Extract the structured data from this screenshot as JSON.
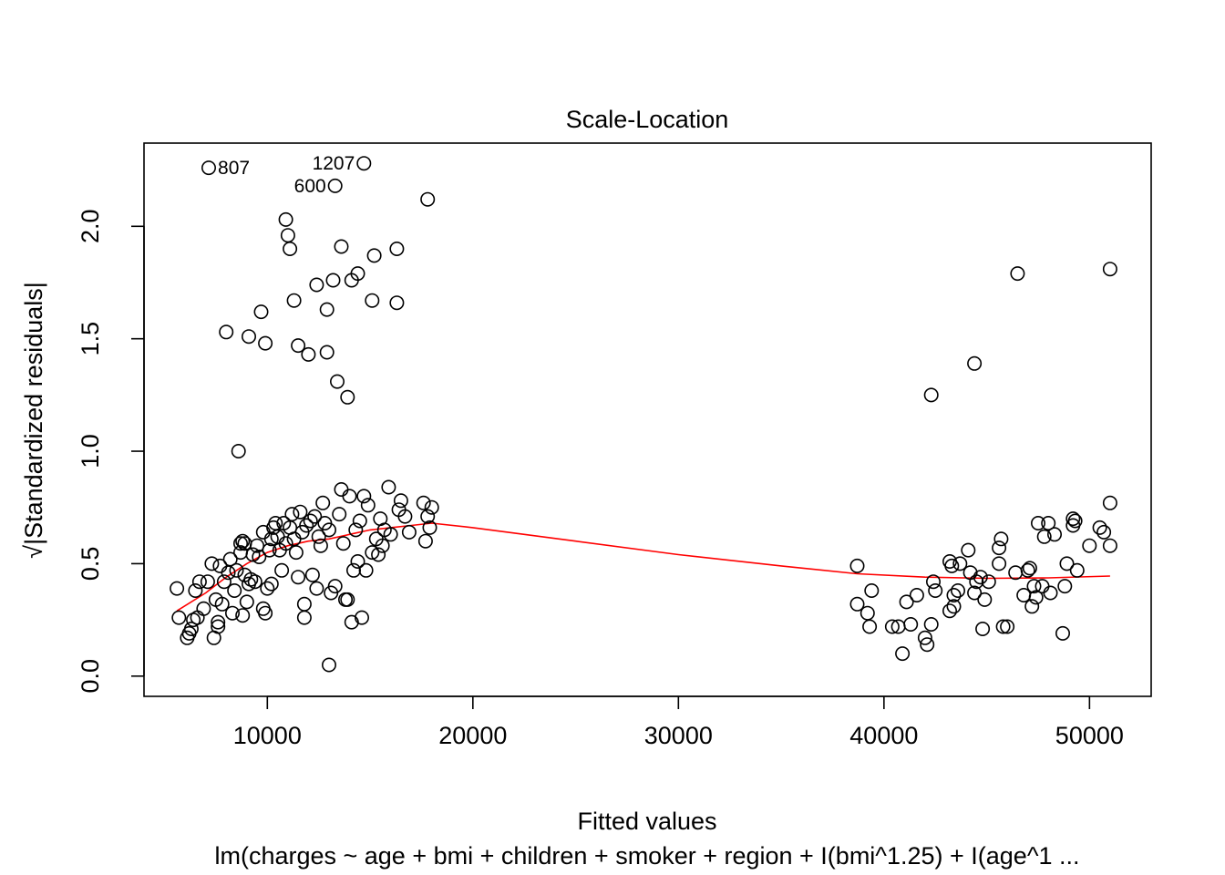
{
  "chart_data": {
    "type": "scatter",
    "title": "Scale-Location",
    "xlabel": "Fitted values",
    "ylabel": "√|Standardized residuals|",
    "subtitle": "lm(charges ~ age + bmi + children + smoker + region + I(bmi^1.25) + I(age^1 ...",
    "xlim": [
      4000,
      53000
    ],
    "ylim": [
      -0.09,
      2.37
    ],
    "x_ticks": [
      10000,
      20000,
      30000,
      40000,
      50000
    ],
    "x_tick_labels": [
      "10000",
      "20000",
      "30000",
      "40000",
      "50000"
    ],
    "y_ticks": [
      0.0,
      0.5,
      1.0,
      1.5,
      2.0
    ],
    "y_tick_labels": [
      "0.0",
      "0.5",
      "1.0",
      "1.5",
      "2.0"
    ],
    "grid": false,
    "point_color": "#000000",
    "smooth_color": "#ff0000",
    "labeled_points": [
      {
        "label": "807",
        "x": 7150,
        "y": 2.26,
        "pos": "right"
      },
      {
        "label": "1207",
        "x": 14700,
        "y": 2.28,
        "pos": "left"
      },
      {
        "label": "600",
        "x": 13300,
        "y": 2.18,
        "pos": "left"
      }
    ],
    "points": [
      [
        5600,
        0.39
      ],
      [
        5700,
        0.26
      ],
      [
        6100,
        0.17
      ],
      [
        6200,
        0.19
      ],
      [
        6300,
        0.21
      ],
      [
        6400,
        0.25
      ],
      [
        6500,
        0.38
      ],
      [
        6600,
        0.26
      ],
      [
        6700,
        0.42
      ],
      [
        6900,
        0.3
      ],
      [
        7100,
        0.42
      ],
      [
        7300,
        0.5
      ],
      [
        7400,
        0.17
      ],
      [
        7500,
        0.34
      ],
      [
        7600,
        0.22
      ],
      [
        7600,
        0.24
      ],
      [
        7700,
        0.49
      ],
      [
        7800,
        0.32
      ],
      [
        7900,
        0.42
      ],
      [
        8000,
        1.53
      ],
      [
        8100,
        0.46
      ],
      [
        8200,
        0.52
      ],
      [
        8300,
        0.28
      ],
      [
        8400,
        0.38
      ],
      [
        8500,
        0.47
      ],
      [
        8600,
        1.0
      ],
      [
        8700,
        0.55
      ],
      [
        8700,
        0.59
      ],
      [
        8800,
        0.6
      ],
      [
        8800,
        0.27
      ],
      [
        8900,
        0.45
      ],
      [
        8900,
        0.59
      ],
      [
        9000,
        0.33
      ],
      [
        9100,
        1.51
      ],
      [
        9100,
        0.41
      ],
      [
        9200,
        0.43
      ],
      [
        9300,
        0.54
      ],
      [
        9400,
        0.42
      ],
      [
        9500,
        0.58
      ],
      [
        9600,
        0.53
      ],
      [
        9700,
        1.62
      ],
      [
        9800,
        0.3
      ],
      [
        9800,
        0.64
      ],
      [
        9900,
        1.48
      ],
      [
        9900,
        0.28
      ],
      [
        10000,
        0.39
      ],
      [
        10100,
        0.56
      ],
      [
        10200,
        0.61
      ],
      [
        10200,
        0.41
      ],
      [
        10300,
        0.66
      ],
      [
        10400,
        0.68
      ],
      [
        10500,
        0.62
      ],
      [
        10600,
        0.56
      ],
      [
        10700,
        0.47
      ],
      [
        10800,
        0.68
      ],
      [
        10900,
        0.59
      ],
      [
        10900,
        2.03
      ],
      [
        11000,
        1.96
      ],
      [
        11100,
        1.9
      ],
      [
        11100,
        0.66
      ],
      [
        11200,
        0.72
      ],
      [
        11300,
        1.67
      ],
      [
        11300,
        0.61
      ],
      [
        11400,
        0.55
      ],
      [
        11500,
        1.47
      ],
      [
        11500,
        0.44
      ],
      [
        11600,
        0.73
      ],
      [
        11700,
        0.64
      ],
      [
        11800,
        0.32
      ],
      [
        11800,
        0.26
      ],
      [
        11900,
        0.67
      ],
      [
        12000,
        1.43
      ],
      [
        12100,
        0.69
      ],
      [
        12200,
        0.45
      ],
      [
        12300,
        0.71
      ],
      [
        12400,
        1.74
      ],
      [
        12400,
        0.39
      ],
      [
        12500,
        0.62
      ],
      [
        12600,
        0.58
      ],
      [
        12700,
        0.77
      ],
      [
        12800,
        0.68
      ],
      [
        12900,
        1.63
      ],
      [
        12900,
        1.44
      ],
      [
        13000,
        0.05
      ],
      [
        13000,
        0.65
      ],
      [
        13100,
        0.37
      ],
      [
        13200,
        1.76
      ],
      [
        13300,
        0.4
      ],
      [
        13300,
        2.18
      ],
      [
        13400,
        1.31
      ],
      [
        13500,
        0.72
      ],
      [
        13600,
        1.91
      ],
      [
        13600,
        0.83
      ],
      [
        13700,
        0.59
      ],
      [
        13800,
        0.34
      ],
      [
        13900,
        1.24
      ],
      [
        13900,
        0.34
      ],
      [
        14000,
        0.8
      ],
      [
        14100,
        1.76
      ],
      [
        14100,
        0.24
      ],
      [
        14200,
        0.47
      ],
      [
        14300,
        0.65
      ],
      [
        14400,
        1.79
      ],
      [
        14400,
        0.51
      ],
      [
        14500,
        0.69
      ],
      [
        14600,
        0.26
      ],
      [
        14700,
        2.28
      ],
      [
        14700,
        0.8
      ],
      [
        14800,
        0.47
      ],
      [
        14900,
        0.76
      ],
      [
        15100,
        1.67
      ],
      [
        15100,
        0.55
      ],
      [
        15200,
        1.87
      ],
      [
        15300,
        0.61
      ],
      [
        15400,
        0.54
      ],
      [
        15500,
        0.7
      ],
      [
        15600,
        0.58
      ],
      [
        15700,
        0.65
      ],
      [
        15900,
        0.84
      ],
      [
        16000,
        0.63
      ],
      [
        16300,
        1.9
      ],
      [
        16300,
        1.66
      ],
      [
        16400,
        0.74
      ],
      [
        16500,
        0.78
      ],
      [
        16700,
        0.71
      ],
      [
        16900,
        0.64
      ],
      [
        17600,
        0.77
      ],
      [
        17700,
        0.6
      ],
      [
        17800,
        2.12
      ],
      [
        17800,
        0.71
      ],
      [
        17900,
        0.66
      ],
      [
        18000,
        0.75
      ],
      [
        7150,
        2.26
      ],
      [
        38700,
        0.49
      ],
      [
        38700,
        0.32
      ],
      [
        39200,
        0.28
      ],
      [
        39300,
        0.22
      ],
      [
        39400,
        0.38
      ],
      [
        40400,
        0.22
      ],
      [
        40700,
        0.22
      ],
      [
        40900,
        0.1
      ],
      [
        41100,
        0.33
      ],
      [
        41300,
        0.23
      ],
      [
        41600,
        0.36
      ],
      [
        42000,
        0.17
      ],
      [
        42100,
        0.14
      ],
      [
        42300,
        1.25
      ],
      [
        42300,
        0.23
      ],
      [
        42400,
        0.42
      ],
      [
        42500,
        0.38
      ],
      [
        43200,
        0.51
      ],
      [
        43200,
        0.29
      ],
      [
        43300,
        0.49
      ],
      [
        43400,
        0.31
      ],
      [
        43400,
        0.36
      ],
      [
        43600,
        0.38
      ],
      [
        43700,
        0.5
      ],
      [
        44100,
        0.56
      ],
      [
        44200,
        0.46
      ],
      [
        44400,
        1.39
      ],
      [
        44400,
        0.37
      ],
      [
        44500,
        0.42
      ],
      [
        44700,
        0.44
      ],
      [
        44800,
        0.21
      ],
      [
        44900,
        0.34
      ],
      [
        45100,
        0.42
      ],
      [
        45600,
        0.57
      ],
      [
        45600,
        0.5
      ],
      [
        45700,
        0.61
      ],
      [
        45800,
        0.22
      ],
      [
        46000,
        0.22
      ],
      [
        46400,
        0.46
      ],
      [
        46500,
        1.79
      ],
      [
        46800,
        0.36
      ],
      [
        47000,
        0.47
      ],
      [
        47100,
        0.48
      ],
      [
        47200,
        0.31
      ],
      [
        47300,
        0.4
      ],
      [
        47400,
        0.35
      ],
      [
        47500,
        0.68
      ],
      [
        47700,
        0.4
      ],
      [
        47800,
        0.62
      ],
      [
        48000,
        0.68
      ],
      [
        48100,
        0.37
      ],
      [
        48300,
        0.63
      ],
      [
        48700,
        0.19
      ],
      [
        48800,
        0.4
      ],
      [
        48900,
        0.5
      ],
      [
        49200,
        0.7
      ],
      [
        49200,
        0.67
      ],
      [
        49300,
        0.69
      ],
      [
        49400,
        0.47
      ],
      [
        50000,
        0.58
      ],
      [
        50500,
        0.66
      ],
      [
        50700,
        0.64
      ],
      [
        51000,
        1.81
      ],
      [
        51000,
        0.58
      ],
      [
        51000,
        0.77
      ]
    ],
    "smooth": [
      [
        5600,
        0.29
      ],
      [
        7000,
        0.37
      ],
      [
        8000,
        0.44
      ],
      [
        9000,
        0.5
      ],
      [
        10000,
        0.55
      ],
      [
        11000,
        0.58
      ],
      [
        12000,
        0.6
      ],
      [
        13000,
        0.61
      ],
      [
        14000,
        0.63
      ],
      [
        15000,
        0.65
      ],
      [
        16000,
        0.66
      ],
      [
        17000,
        0.67
      ],
      [
        18000,
        0.68
      ],
      [
        20000,
        0.66
      ],
      [
        25000,
        0.6
      ],
      [
        30000,
        0.54
      ],
      [
        35000,
        0.49
      ],
      [
        38700,
        0.455
      ],
      [
        42000,
        0.44
      ],
      [
        45000,
        0.435
      ],
      [
        48000,
        0.437
      ],
      [
        51000,
        0.445
      ]
    ]
  }
}
